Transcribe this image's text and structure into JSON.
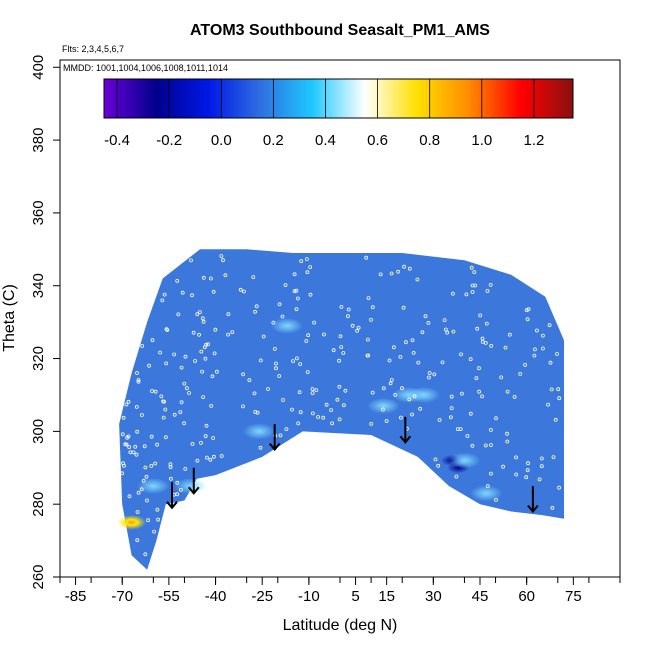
{
  "chart_data": {
    "type": "heatmap",
    "title": "ATOM3 Southbound Seasalt_PM1_AMS",
    "flights_note": "Flts: 2,3,4,5,6,7",
    "dates_note": "MMDD: 1001,1004,1006,1008,1011,1014",
    "xlabel": "Latitude (deg N)",
    "ylabel": "Theta (C)",
    "xlim": [
      -90,
      90
    ],
    "ylim": [
      260,
      402
    ],
    "x_ticks": [
      -85,
      -70,
      -55,
      -40,
      -25,
      -10,
      5,
      15,
      30,
      45,
      60,
      75
    ],
    "y_ticks": [
      260,
      280,
      300,
      320,
      340,
      360,
      380,
      400
    ],
    "colorbar": {
      "range": [
        -0.45,
        1.35
      ],
      "ticks": [
        "-0.4",
        "-0.2",
        "0.0",
        "0.2",
        "0.4",
        "0.6",
        "0.8",
        "1.0",
        "1.2"
      ],
      "tick_values": [
        -0.4,
        -0.2,
        0.0,
        0.2,
        0.4,
        0.6,
        0.8,
        1.0,
        1.2
      ],
      "stops": [
        "#6a00d8",
        "#00008c",
        "#0018e6",
        "#2f6ee0",
        "#1ec8ff",
        "#ffffff",
        "#ffe000",
        "#ff8c00",
        "#ff0000",
        "#8b1010"
      ]
    },
    "field_color": "#3c78dc",
    "envelope_top": [
      [
        -71,
        302
      ],
      [
        -67,
        316
      ],
      [
        -62,
        330
      ],
      [
        -57,
        342
      ],
      [
        -51,
        346
      ],
      [
        -45,
        350
      ],
      [
        -30,
        350
      ],
      [
        -15,
        349
      ],
      [
        0,
        349
      ],
      [
        20,
        349
      ],
      [
        40,
        347
      ],
      [
        55,
        343
      ],
      [
        66,
        337
      ],
      [
        72,
        325
      ],
      [
        72,
        276
      ]
    ],
    "envelope_bottom": [
      [
        -71,
        302
      ],
      [
        -70,
        280
      ],
      [
        -67,
        266
      ],
      [
        -62,
        262
      ],
      [
        -59,
        270
      ],
      [
        -56,
        280
      ],
      [
        -50,
        281
      ],
      [
        -46,
        287
      ],
      [
        -40,
        288
      ],
      [
        -25,
        293
      ],
      [
        -12,
        300
      ],
      [
        10,
        299
      ],
      [
        25,
        293
      ],
      [
        35,
        285
      ],
      [
        45,
        280
      ],
      [
        55,
        278
      ],
      [
        65,
        277
      ],
      [
        72,
        276
      ]
    ],
    "hotspots": [
      {
        "lat": 36,
        "theta": 292,
        "value": -0.3
      },
      {
        "lat": 38,
        "theta": 290,
        "value": -0.25
      },
      {
        "lat": 14,
        "theta": 307,
        "value": 0.35
      },
      {
        "lat": 22,
        "theta": 310,
        "value": 0.3
      },
      {
        "lat": 27,
        "theta": 310,
        "value": 0.3
      },
      {
        "lat": -17,
        "theta": 329,
        "value": 0.3
      },
      {
        "lat": -67,
        "theta": 275,
        "value": 0.9
      },
      {
        "lat": -60,
        "theta": 285,
        "value": 0.3
      },
      {
        "lat": -48,
        "theta": 285,
        "value": 0.3
      },
      {
        "lat": 47,
        "theta": 283,
        "value": 0.3
      },
      {
        "lat": -26,
        "theta": 300,
        "value": 0.3
      },
      {
        "lat": 40,
        "theta": 292,
        "value": 0.4
      }
    ],
    "arrows": [
      {
        "lat": -54,
        "theta_top": 286,
        "theta_bottom": 279
      },
      {
        "lat": -47,
        "theta_top": 290,
        "theta_bottom": 283
      },
      {
        "lat": -21,
        "theta_top": 302,
        "theta_bottom": 295
      },
      {
        "lat": 21,
        "theta_top": 304,
        "theta_bottom": 297
      },
      {
        "lat": 62,
        "theta_top": 285,
        "theta_bottom": 278
      }
    ]
  }
}
